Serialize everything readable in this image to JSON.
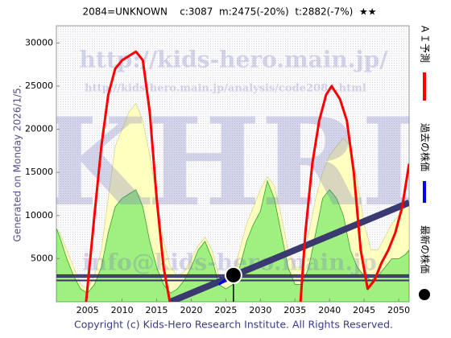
{
  "chart_data": {
    "type": "stock-forecast",
    "title": "2084=UNKNOWN    c:3087  m:2475(-20%)  t:2882(-7%)  ★★",
    "side_text": "Generated on Monday 2026/1/5.",
    "footer": "Copyright (c) Kids-Hero Research Institute. All Rights Reserved.",
    "watermarks": [
      "http://kids-hero.main.jp/",
      "http://kids-hero.main.jp/analysis/code2084.html",
      "KHRI",
      "info@kids-hero.main.jp"
    ],
    "xlim": [
      2000.5,
      2051.5
    ],
    "ylim": [
      0,
      32000
    ],
    "xticks": [
      2005,
      2010,
      2015,
      2020,
      2025,
      2030,
      2035,
      2040,
      2045,
      2050
    ],
    "yticks": [
      5000,
      10000,
      15000,
      20000,
      25000,
      30000
    ],
    "areas": [
      {
        "color": "#ffffc0",
        "edge": "#d8d890",
        "x": [
          2000.5,
          2001,
          2002,
          2003,
          2004,
          2005,
          2006,
          2007,
          2008,
          2009,
          2010,
          2011,
          2012,
          2013,
          2014,
          2015,
          2016,
          2017,
          2018,
          2019,
          2020,
          2021,
          2022,
          2023,
          2024,
          2025,
          2026,
          2027,
          2028,
          2029,
          2030,
          2031,
          2032,
          2033,
          2034,
          2035,
          2036,
          2037,
          2038,
          2039,
          2040,
          2041,
          2042,
          2043,
          2044,
          2045,
          2046,
          2047,
          2048,
          2049,
          2050,
          2051,
          2051.5
        ],
        "values": [
          8500,
          8000,
          6000,
          4000,
          2000,
          1500,
          3000,
          6000,
          12000,
          18000,
          20000,
          22000,
          23000,
          21000,
          17000,
          12000,
          7000,
          4000,
          3000,
          3500,
          5000,
          6500,
          7500,
          6000,
          3000,
          2500,
          3000,
          6000,
          9000,
          11000,
          13000,
          14500,
          13500,
          10000,
          6000,
          4000,
          4000,
          8000,
          12000,
          15000,
          17000,
          18000,
          19000,
          18000,
          14000,
          9000,
          6000,
          6000,
          7500,
          9000,
          10000,
          11000,
          11500
        ]
      },
      {
        "color": "#a0f080",
        "edge": "#30a030",
        "x": [
          2000.5,
          2001,
          2002,
          2003,
          2004,
          2005,
          2006,
          2007,
          2008,
          2009,
          2010,
          2011,
          2012,
          2013,
          2014,
          2015,
          2016,
          2017,
          2018,
          2019,
          2020,
          2021,
          2022,
          2023,
          2024,
          2025,
          2026,
          2027,
          2028,
          2029,
          2030,
          2031,
          2032,
          2033,
          2034,
          2035,
          2036,
          2037,
          2038,
          2039,
          2040,
          2041,
          2042,
          2043,
          2044,
          2045,
          2046,
          2047,
          2048,
          2049,
          2050,
          2051,
          2051.5
        ],
        "values": [
          8500,
          7500,
          5000,
          3000,
          1500,
          1000,
          2000,
          4000,
          8000,
          11000,
          12000,
          12500,
          13000,
          11000,
          7000,
          4000,
          2000,
          1000,
          1500,
          2500,
          4000,
          6000,
          7000,
          5000,
          2000,
          1500,
          2000,
          4000,
          7000,
          9000,
          10500,
          14000,
          12000,
          8000,
          4000,
          2000,
          2000,
          4000,
          8000,
          12000,
          13000,
          12000,
          10000,
          6000,
          4000,
          3000,
          2500,
          3000,
          4000,
          5000,
          5000,
          5500,
          6000
        ]
      }
    ],
    "hlines": {
      "color": "#333366",
      "values": [
        3087,
        2882,
        2475
      ]
    },
    "trend": {
      "color": "#3a3a70",
      "x": [
        2017,
        2051.5
      ],
      "values": [
        0,
        11500
      ]
    },
    "series": [
      {
        "name": "ＡＩ予測",
        "color": "#ff0000",
        "kind": "line",
        "x": [
          2004.8,
          2006,
          2007,
          2008,
          2009,
          2010,
          2011,
          2012,
          2013,
          2014,
          2015,
          2016,
          2016.9,
          2025,
          2035.8,
          2036.5,
          2037.5,
          2038.5,
          2039.5,
          2040.3,
          2041.5,
          2042.5,
          2043.5,
          2044.5,
          2045.5,
          2046.5,
          2047.5,
          2048.5,
          2049.5,
          2050.5,
          2051.5
        ],
        "values": [
          0,
          10000,
          18000,
          24000,
          27000,
          28000,
          28500,
          29000,
          28000,
          22000,
          12000,
          4000,
          0,
          null,
          0,
          8000,
          16000,
          21000,
          24000,
          25000,
          23500,
          21000,
          15000,
          6000,
          1500,
          2500,
          4500,
          6000,
          8000,
          11000,
          16000
        ]
      },
      {
        "name": "過去の株価",
        "color": "#0000ff",
        "kind": "line",
        "x": [
          2024,
          2025,
          2026.1
        ],
        "values": [
          2000,
          2600,
          3087
        ]
      },
      {
        "name": "最新の株価",
        "color": "#000000",
        "kind": "point",
        "x": [
          2026.1
        ],
        "values": [
          3087
        ]
      }
    ]
  }
}
